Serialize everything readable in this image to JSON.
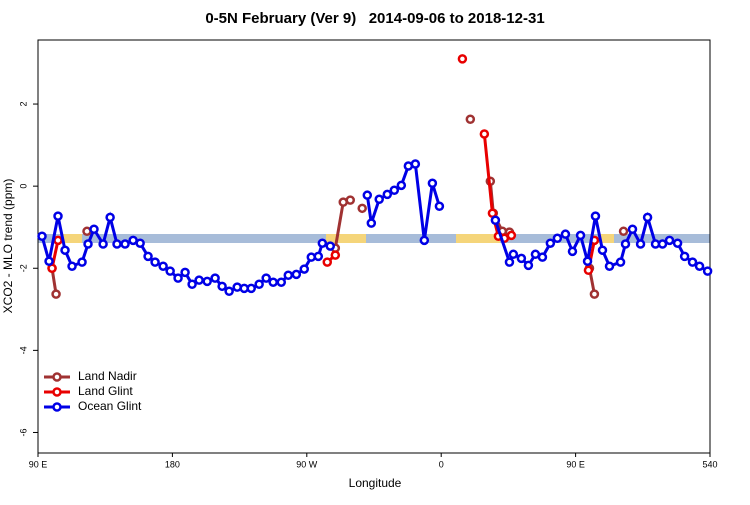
{
  "chart_data": {
    "type": "line",
    "title": "0-5N February (Ver 9)   2014-09-06 to 2018-12-31",
    "x_label": "Longitude",
    "y_label": "XCO2 - MLO trend (ppm)",
    "xlim": [
      90,
      540
    ],
    "xticks": [
      {
        "value": 90,
        "label": "90 E"
      },
      180,
      {
        "value": 270,
        "label": "90 W"
      },
      {
        "value": 360,
        "label": "0"
      },
      {
        "value": 450,
        "label": "90 E"
      },
      540
    ],
    "ylim": [
      -6.5,
      3.56
    ],
    "yticks": [
      -6,
      -4,
      -2,
      0,
      2
    ],
    "legend": "bottom-left",
    "series": [
      {
        "name": "Land Nadir",
        "color": "#a03232",
        "x": [
          99.4,
          102.1,
          null,
          122.8,
          null,
          289.1,
          294.4,
          299.1,
          null,
          307.1,
          null,
          379.5,
          null,
          392.9,
          394.9,
          401.0,
          405.7,
          null,
          459.3,
          462.6,
          null,
          482.1
        ],
        "values": [
          -2.0,
          -2.63,
          null,
          -1.1,
          null,
          -1.51,
          -0.39,
          -0.34,
          null,
          -0.54,
          null,
          1.63,
          null,
          0.12,
          -0.66,
          -1.1,
          -1.12,
          null,
          -2.0,
          -2.63,
          null,
          -1.1
        ]
      },
      {
        "name": "Land Glint",
        "color": "#e80000",
        "x": [
          99.4,
          103.4,
          null,
          283.7,
          289.1,
          null,
          374.2,
          null,
          388.9,
          394.3,
          398.3,
          402.3,
          407.0,
          null,
          458.6,
          462.6
        ],
        "values": [
          -2.0,
          -1.32,
          null,
          -1.85,
          -1.68,
          null,
          3.1,
          null,
          1.27,
          -0.66,
          -1.22,
          -1.27,
          -1.2,
          null,
          -2.05,
          -1.32
        ]
      },
      {
        "name": "Ocean Glint",
        "color": "#0000e6",
        "x": [
          92.7,
          97.4,
          103.4,
          108.1,
          112.8,
          119.5,
          123.5,
          127.5,
          133.6,
          138.3,
          142.9,
          148.3,
          153.7,
          158.4,
          163.7,
          168.4,
          173.8,
          178.5,
          183.8,
          188.5,
          193.2,
          197.9,
          203.3,
          208.6,
          213.3,
          218.0,
          223.4,
          228.1,
          232.8,
          238.1,
          242.8,
          247.5,
          252.9,
          257.6,
          263.0,
          268.3,
          273.0,
          277.7,
          280.4,
          285.7,
          null,
          310.5,
          313.2,
          318.5,
          323.9,
          328.6,
          333.3,
          338.0,
          342.7,
          348.7,
          354.1,
          358.8,
          null,
          396.3,
          405.7,
          408.3,
          413.7,
          418.4,
          423.1,
          427.8,
          433.1,
          437.8,
          443.2,
          447.9,
          453.3,
          458.0,
          463.3,
          468.0,
          472.7,
          480.1,
          483.4,
          488.1,
          493.5,
          498.2,
          503.5,
          508.2,
          512.9,
          518.3,
          523.0,
          528.3,
          533.0,
          538.4
        ],
        "values": [
          -1.22,
          -1.83,
          -0.73,
          -1.56,
          -1.95,
          -1.85,
          -1.41,
          -1.05,
          -1.41,
          -0.76,
          -1.41,
          -1.41,
          -1.32,
          -1.39,
          -1.71,
          -1.85,
          -1.95,
          -2.07,
          -2.24,
          -2.1,
          -2.39,
          -2.29,
          -2.32,
          -2.24,
          -2.44,
          -2.56,
          -2.46,
          -2.49,
          -2.49,
          -2.39,
          -2.24,
          -2.34,
          -2.34,
          -2.17,
          -2.15,
          -2.02,
          -1.73,
          -1.71,
          -1.39,
          -1.46,
          null,
          -0.22,
          -0.9,
          -0.32,
          -0.2,
          -0.1,
          0.02,
          0.49,
          0.54,
          -1.32,
          0.07,
          -0.49,
          null,
          -0.83,
          -1.85,
          -1.66,
          -1.76,
          -1.93,
          -1.66,
          -1.73,
          -1.39,
          -1.27,
          -1.17,
          -1.59,
          -1.2,
          -1.83,
          -0.73,
          -1.56,
          -1.95,
          -1.85,
          -1.41,
          -1.05,
          -1.41,
          -0.76,
          -1.41,
          -1.41,
          -1.32,
          -1.39,
          -1.71,
          -1.85,
          -1.95,
          -2.07
        ]
      }
    ]
  }
}
